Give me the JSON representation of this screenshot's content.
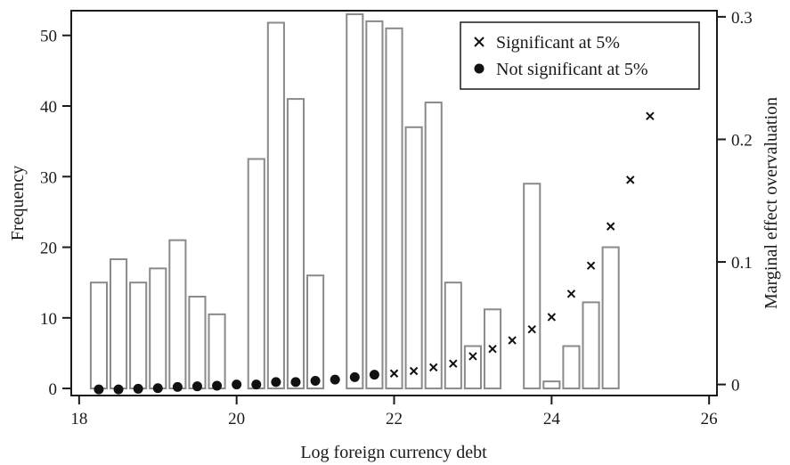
{
  "chart_data": {
    "type": "bar",
    "title": "",
    "xlabel": "Log foreign currency debt",
    "ylabel": "Frequency",
    "y2label": "Marginal effect overvaluation",
    "xlim": [
      17.9,
      26.1
    ],
    "ylim": [
      -1,
      53.5
    ],
    "y2lim": [
      -0.009,
      0.305
    ],
    "xticks": [
      "18",
      "20",
      "22",
      "24",
      "26"
    ],
    "yticks": [
      "0",
      "10",
      "20",
      "30",
      "40",
      "50"
    ],
    "y2ticks": [
      "0",
      "0.1",
      "0.2",
      "0.3"
    ],
    "grid": false,
    "legend_position": "top-right",
    "histogram": {
      "name": "Frequency",
      "bin_width": 0.25,
      "bin_starts": [
        18.125,
        18.375,
        18.625,
        18.875,
        19.125,
        19.375,
        19.625,
        19.875,
        20.125,
        20.375,
        20.625,
        20.875,
        21.125,
        21.375,
        21.625,
        21.875,
        22.125,
        22.375,
        22.625,
        22.875,
        23.125,
        23.375,
        23.625,
        23.875,
        24.125,
        24.375,
        24.625,
        24.875,
        25.125
      ],
      "values": [
        15,
        18.3,
        15,
        17,
        21,
        13,
        10.5,
        0,
        32.5,
        51.8,
        41,
        16,
        0,
        53,
        52,
        51,
        37,
        40.5,
        15,
        6,
        11.2,
        0,
        29,
        1,
        6,
        12.2,
        20,
        0,
        0
      ]
    },
    "series": [
      {
        "name": "Significant at 5%",
        "marker": "x",
        "x": [
          22.0,
          22.25,
          22.5,
          22.75,
          23.0,
          23.25,
          23.5,
          23.75,
          24.0,
          24.25,
          24.5,
          24.75,
          25.0,
          25.25
        ],
        "y": [
          0.009,
          0.011,
          0.014,
          0.017,
          0.023,
          0.029,
          0.036,
          0.045,
          0.055,
          0.074,
          0.097,
          0.129,
          0.167,
          0.219
        ]
      },
      {
        "name": "Not significant at 5%",
        "marker": "dot",
        "x": [
          18.25,
          18.5,
          18.75,
          19.0,
          19.25,
          19.5,
          19.75,
          20.0,
          20.25,
          20.5,
          20.75,
          21.0,
          21.25,
          21.5,
          21.75
        ],
        "y": [
          -0.004,
          -0.004,
          -0.0035,
          -0.003,
          -0.002,
          -0.0015,
          -0.001,
          0.0,
          0.0,
          0.002,
          0.002,
          0.003,
          0.004,
          0.006,
          0.008
        ]
      }
    ],
    "legend": {
      "entries": [
        "Significant at 5%",
        "Not significant at 5%"
      ]
    },
    "colors": {
      "bar_stroke": "#8a8a8a",
      "bar_fill": "#ffffff",
      "marker": "#111111",
      "axis": "#1a1a1a"
    }
  }
}
